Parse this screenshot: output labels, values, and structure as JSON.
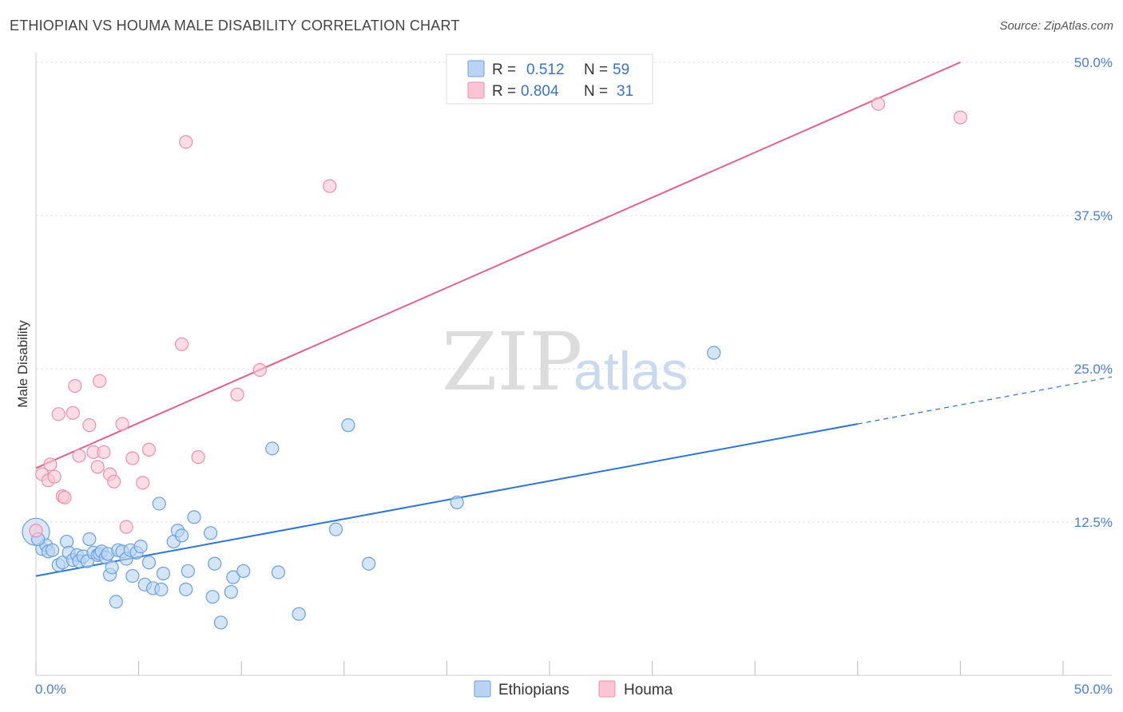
{
  "title": "ETHIOPIAN VS HOUMA MALE DISABILITY CORRELATION CHART",
  "source": "Source: ZipAtlas.com",
  "watermark": {
    "zip": "ZIP",
    "atlas": "atlas"
  },
  "chart_data": {
    "type": "scatter",
    "xlabel": "",
    "ylabel": "Male Disability",
    "xlim": [
      0,
      50
    ],
    "ylim": [
      0,
      50
    ],
    "x_tick_labels": [
      "0.0%",
      "50.0%"
    ],
    "y_ticks": [
      12.5,
      25.0,
      37.5,
      50.0
    ],
    "y_tick_labels": [
      "12.5%",
      "25.0%",
      "37.5%",
      "50.0%"
    ],
    "grid": true,
    "legend_position": "top-center",
    "legend": [
      {
        "r_label": "R =",
        "r_value": "0.512",
        "n_label": "N =",
        "n_value": "59"
      },
      {
        "r_label": "R =",
        "r_value": "0.804",
        "n_label": "N =",
        "n_value": "31"
      }
    ],
    "series": [
      {
        "name": "Ethiopians",
        "color": "#6a9fdc",
        "fill": "#b9d3f3",
        "trend": {
          "x0": 0,
          "y0": 8.1,
          "x1": 40,
          "y1": 20.5,
          "dash_to_x": 50,
          "dash_to_y": 23.6,
          "color": "#2f74d0"
        },
        "points": [
          [
            0.0,
            11.7
          ],
          [
            0.3,
            10.3
          ],
          [
            0.5,
            10.6
          ],
          [
            0.6,
            10.1
          ],
          [
            0.8,
            10.2
          ],
          [
            1.1,
            9.0
          ],
          [
            1.3,
            9.2
          ],
          [
            1.5,
            10.9
          ],
          [
            1.6,
            10.0
          ],
          [
            1.8,
            9.4
          ],
          [
            2.0,
            9.8
          ],
          [
            2.1,
            9.3
          ],
          [
            2.3,
            9.7
          ],
          [
            2.5,
            9.3
          ],
          [
            2.6,
            11.1
          ],
          [
            2.8,
            10.0
          ],
          [
            3.0,
            9.8
          ],
          [
            3.1,
            9.9
          ],
          [
            3.2,
            10.1
          ],
          [
            3.4,
            9.6
          ],
          [
            3.5,
            9.9
          ],
          [
            3.6,
            8.2
          ],
          [
            3.7,
            8.8
          ],
          [
            3.9,
            6.0
          ],
          [
            4.0,
            10.2
          ],
          [
            4.2,
            10.1
          ],
          [
            4.4,
            9.5
          ],
          [
            4.6,
            10.2
          ],
          [
            4.7,
            8.1
          ],
          [
            4.9,
            10.0
          ],
          [
            5.1,
            10.5
          ],
          [
            5.3,
            7.4
          ],
          [
            5.5,
            9.2
          ],
          [
            5.7,
            7.1
          ],
          [
            6.0,
            14.0
          ],
          [
            6.1,
            7.0
          ],
          [
            6.2,
            8.3
          ],
          [
            6.7,
            10.9
          ],
          [
            6.9,
            11.8
          ],
          [
            7.1,
            11.4
          ],
          [
            7.3,
            7.0
          ],
          [
            7.4,
            8.5
          ],
          [
            7.7,
            12.9
          ],
          [
            8.5,
            11.6
          ],
          [
            8.6,
            6.4
          ],
          [
            8.7,
            9.1
          ],
          [
            9.0,
            4.3
          ],
          [
            9.5,
            6.8
          ],
          [
            9.6,
            8.0
          ],
          [
            10.1,
            8.5
          ],
          [
            11.5,
            18.5
          ],
          [
            11.8,
            8.4
          ],
          [
            12.8,
            5.0
          ],
          [
            14.6,
            11.9
          ],
          [
            15.2,
            20.4
          ],
          [
            16.2,
            9.1
          ],
          [
            20.5,
            14.1
          ],
          [
            33.0,
            26.3
          ],
          [
            0.1,
            11.1
          ]
        ]
      },
      {
        "name": "Houma",
        "color": "#eb90aa",
        "fill": "#fac6d5",
        "trend": {
          "x0": 0,
          "y0": 16.9,
          "x1": 45,
          "y1": 50.0,
          "color": "#e0628a"
        },
        "points": [
          [
            0.0,
            11.8
          ],
          [
            0.3,
            16.4
          ],
          [
            0.6,
            15.9
          ],
          [
            0.7,
            17.2
          ],
          [
            0.9,
            16.2
          ],
          [
            1.1,
            21.3
          ],
          [
            1.3,
            14.6
          ],
          [
            1.4,
            14.5
          ],
          [
            1.8,
            21.4
          ],
          [
            1.9,
            23.6
          ],
          [
            2.1,
            17.9
          ],
          [
            2.6,
            20.4
          ],
          [
            2.8,
            18.2
          ],
          [
            3.0,
            17.0
          ],
          [
            3.1,
            24.0
          ],
          [
            3.3,
            18.2
          ],
          [
            3.6,
            16.4
          ],
          [
            3.8,
            15.8
          ],
          [
            4.2,
            20.5
          ],
          [
            4.4,
            12.1
          ],
          [
            4.7,
            17.7
          ],
          [
            5.2,
            15.7
          ],
          [
            5.5,
            18.4
          ],
          [
            7.1,
            27.0
          ],
          [
            7.3,
            43.5
          ],
          [
            7.9,
            17.8
          ],
          [
            9.8,
            22.9
          ],
          [
            10.9,
            24.9
          ],
          [
            14.3,
            39.9
          ],
          [
            41.0,
            46.6
          ],
          [
            45.0,
            45.5
          ]
        ]
      }
    ]
  }
}
